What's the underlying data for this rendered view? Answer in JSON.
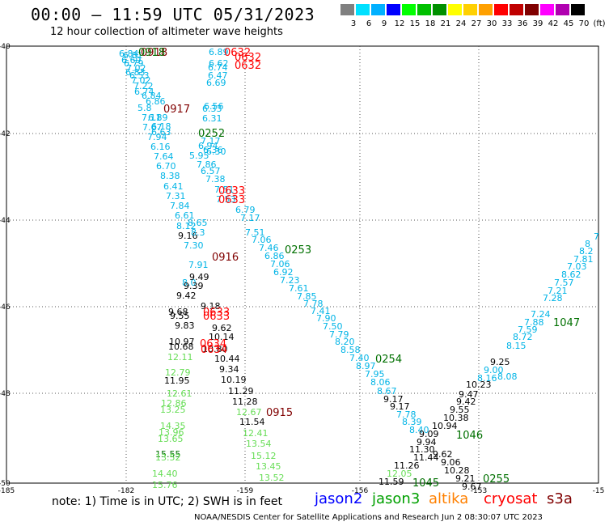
{
  "title": "00:00 – 11:59 UTC 05/31/2023",
  "subtitle": "12 hour collection of altimeter wave heights",
  "legend": {
    "colors": [
      "#808080",
      "#00e0ff",
      "#00b0ff",
      "#0000ff",
      "#00ff00",
      "#00c000",
      "#009000",
      "#ffff00",
      "#ffd000",
      "#ffa000",
      "#ff0000",
      "#c00000",
      "#800000",
      "#ff00ff",
      "#b000b0",
      "#000000"
    ],
    "labels": [
      "3",
      "6",
      "9",
      "12",
      "15",
      "18",
      "21",
      "24",
      "27",
      "30",
      "33",
      "36",
      "39",
      "42",
      "45",
      "70",
      "(ft)"
    ]
  },
  "map": {
    "lat_labels": [
      "-40",
      "-42",
      "-44",
      "-46",
      "-48",
      "-50"
    ],
    "lon_labels": [
      "-185",
      "-182",
      "-159",
      "-156",
      "-153",
      "-15"
    ]
  },
  "satellite_colors": {
    "jason2": "#0000ff",
    "jason3": "#00a000",
    "altika": "#ff8000",
    "cryosat": "#ff0000",
    "s3a": "#800000",
    "light": "#00b4e6",
    "lightgreen": "#66dd55",
    "darkgreen": "#007000"
  },
  "observations": [
    {
      "text": "6.84",
      "c": "light"
    },
    {
      "text": "6.81",
      "c": "light"
    },
    {
      "text": "6.69",
      "c": "light"
    },
    {
      "text": "6.79",
      "c": "light"
    },
    {
      "text": "7.02",
      "c": "light"
    },
    {
      "text": "6.83",
      "c": "light"
    },
    {
      "text": "6.53",
      "c": "light"
    },
    {
      "text": "7.02",
      "c": "light"
    },
    {
      "text": "7.22",
      "c": "light"
    },
    {
      "text": "6.74",
      "c": "light"
    },
    {
      "text": "6.84",
      "c": "light"
    },
    {
      "text": "6.86",
      "c": "light"
    },
    {
      "text": "5.8",
      "c": "light"
    },
    {
      "text": "7.11",
      "c": "light"
    },
    {
      "text": "6.89",
      "c": "light"
    },
    {
      "text": "7.67",
      "c": "light"
    },
    {
      "text": "6.18",
      "c": "light"
    },
    {
      "text": "6.63",
      "c": "light"
    },
    {
      "text": "7.94",
      "c": "light"
    },
    {
      "text": "6.16",
      "c": "light"
    },
    {
      "text": "7.64",
      "c": "light"
    },
    {
      "text": "6.70",
      "c": "light"
    },
    {
      "text": "8.38",
      "c": "light"
    },
    {
      "text": "6.41",
      "c": "light"
    },
    {
      "text": "7.31",
      "c": "light"
    },
    {
      "text": "7.84",
      "c": "light"
    },
    {
      "text": "6.61",
      "c": "light"
    },
    {
      "text": "8.12",
      "c": "light"
    },
    {
      "text": "7.30",
      "c": "light"
    },
    {
      "text": "7.91",
      "c": "light"
    },
    {
      "text": "8.0",
      "c": "light"
    },
    {
      "text": "6.89",
      "c": "light"
    },
    {
      "text": "6.62",
      "c": "light"
    },
    {
      "text": "6.74",
      "c": "light"
    },
    {
      "text": "6.47",
      "c": "light"
    },
    {
      "text": "6.69",
      "c": "light"
    },
    {
      "text": "6.56",
      "c": "light"
    },
    {
      "text": "6.33",
      "c": "light"
    },
    {
      "text": "6.31",
      "c": "light"
    },
    {
      "text": "7.17",
      "c": "light"
    },
    {
      "text": "6.94",
      "c": "light"
    },
    {
      "text": "6.36",
      "c": "light"
    },
    {
      "text": "6.30",
      "c": "light"
    },
    {
      "text": "5.95",
      "c": "light"
    },
    {
      "text": "7.86",
      "c": "light"
    },
    {
      "text": "6.57",
      "c": "light"
    },
    {
      "text": "7.38",
      "c": "light"
    },
    {
      "text": "7.51",
      "c": "light"
    },
    {
      "text": "7.53",
      "c": "light"
    },
    {
      "text": "6.79",
      "c": "light"
    },
    {
      "text": "7.17",
      "c": "light"
    },
    {
      "text": "7.51",
      "c": "light"
    },
    {
      "text": "7.06",
      "c": "light"
    },
    {
      "text": "7.46",
      "c": "light"
    },
    {
      "text": "6.86",
      "c": "light"
    },
    {
      "text": "7.06",
      "c": "light"
    },
    {
      "text": "6.92",
      "c": "light"
    },
    {
      "text": "7.23",
      "c": "light"
    },
    {
      "text": "7.61",
      "c": "light"
    },
    {
      "text": "7.85",
      "c": "light"
    },
    {
      "text": "7.78",
      "c": "light"
    },
    {
      "text": "7.41",
      "c": "light"
    },
    {
      "text": "7.90",
      "c": "light"
    },
    {
      "text": "7.50",
      "c": "light"
    },
    {
      "text": "7.79",
      "c": "light"
    },
    {
      "text": "8.20",
      "c": "light"
    },
    {
      "text": "8.58",
      "c": "light"
    },
    {
      "text": "7.40",
      "c": "light"
    },
    {
      "text": "8.97",
      "c": "light"
    },
    {
      "text": "7.95",
      "c": "light"
    },
    {
      "text": "8.06",
      "c": "light"
    },
    {
      "text": "8.67",
      "c": "light"
    },
    {
      "text": "9.17",
      "c": "blue"
    },
    {
      "text": "9.17",
      "c": "blue"
    },
    {
      "text": "7.78",
      "c": "light"
    },
    {
      "text": "8.39",
      "c": "light"
    },
    {
      "text": "8.40",
      "c": "light"
    },
    {
      "text": "10.23",
      "c": "blue"
    },
    {
      "text": "9.47",
      "c": "blue"
    },
    {
      "text": "9.42",
      "c": "blue"
    },
    {
      "text": "9.55",
      "c": "blue"
    },
    {
      "text": "10.38",
      "c": "blue"
    },
    {
      "text": "10.94",
      "c": "blue"
    },
    {
      "text": "9.09",
      "c": "blue"
    },
    {
      "text": "9.94",
      "c": "blue"
    },
    {
      "text": "11.30",
      "c": "blue"
    },
    {
      "text": "9.62",
      "c": "blue"
    },
    {
      "text": "11.44",
      "c": "blue"
    },
    {
      "text": "9.06",
      "c": "blue"
    },
    {
      "text": "11.26",
      "c": "blue"
    },
    {
      "text": "10.28",
      "c": "blue"
    },
    {
      "text": "9.21",
      "c": "blue"
    },
    {
      "text": "9.67",
      "c": "blue"
    },
    {
      "text": "11.59",
      "c": "blue"
    },
    {
      "text": "12.05",
      "c": "lightgreen"
    },
    {
      "text": "8.16",
      "c": "light"
    },
    {
      "text": "8.08",
      "c": "light"
    },
    {
      "text": "9.25",
      "c": "blue"
    },
    {
      "text": "9.00",
      "c": "light"
    },
    {
      "text": "8.15",
      "c": "light"
    },
    {
      "text": "8.72",
      "c": "light"
    },
    {
      "text": "7.59",
      "c": "light"
    },
    {
      "text": "7.88",
      "c": "light"
    },
    {
      "text": "7.24",
      "c": "light"
    },
    {
      "text": "7.28",
      "c": "light"
    },
    {
      "text": "7.21",
      "c": "light"
    },
    {
      "text": "7.57",
      "c": "light"
    },
    {
      "text": "8.62",
      "c": "light"
    },
    {
      "text": "7.03",
      "c": "light"
    },
    {
      "text": "7.81",
      "c": "light"
    },
    {
      "text": "8.2",
      "c": "light"
    },
    {
      "text": "8",
      "c": "light"
    },
    {
      "text": "7",
      "c": "light"
    },
    {
      "text": "9.16",
      "c": "blue"
    },
    {
      "text": "8.65",
      "c": "light"
    },
    {
      "text": "8.3",
      "c": "light"
    },
    {
      "text": "9.49",
      "c": "blue"
    },
    {
      "text": "9.39",
      "c": "blue"
    },
    {
      "text": "9.42",
      "c": "blue"
    },
    {
      "text": "9.18",
      "c": "blue"
    },
    {
      "text": "9.68",
      "c": "blue"
    },
    {
      "text": "9.55",
      "c": "blue"
    },
    {
      "text": "9.83",
      "c": "blue"
    },
    {
      "text": "9.62",
      "c": "blue"
    },
    {
      "text": "10.14",
      "c": "blue"
    },
    {
      "text": "10.97",
      "c": "blue"
    },
    {
      "text": "10.68",
      "c": "blue"
    },
    {
      "text": "10.80",
      "c": "blue"
    },
    {
      "text": "10.44",
      "c": "blue"
    },
    {
      "text": "9.34",
      "c": "blue"
    },
    {
      "text": "10.19",
      "c": "blue"
    },
    {
      "text": "11.95",
      "c": "blue"
    },
    {
      "text": "11.29",
      "c": "blue"
    },
    {
      "text": "11.28",
      "c": "blue"
    },
    {
      "text": "11.54",
      "c": "blue"
    },
    {
      "text": "12.11",
      "c": "lightgreen"
    },
    {
      "text": "12.79",
      "c": "lightgreen"
    },
    {
      "text": "12.61",
      "c": "lightgreen"
    },
    {
      "text": "12.86",
      "c": "lightgreen"
    },
    {
      "text": "13.25",
      "c": "lightgreen"
    },
    {
      "text": "14.35",
      "c": "lightgreen"
    },
    {
      "text": "13.96",
      "c": "lightgreen"
    },
    {
      "text": "13.65",
      "c": "lightgreen"
    },
    {
      "text": "15.55",
      "c": "darkgreen"
    },
    {
      "text": "13.52",
      "c": "lightgreen"
    },
    {
      "text": "14.40",
      "c": "lightgreen"
    },
    {
      "text": "15.76",
      "c": "lightgreen"
    },
    {
      "text": "12.67",
      "c": "lightgreen"
    },
    {
      "text": "12.41",
      "c": "lightgreen"
    },
    {
      "text": "13.54",
      "c": "lightgreen"
    },
    {
      "text": "15.12",
      "c": "lightgreen"
    },
    {
      "text": "13.45",
      "c": "lightgreen"
    },
    {
      "text": "13.52",
      "c": "lightgreen"
    }
  ],
  "times": [
    {
      "text": "0918",
      "c": "s3a"
    },
    {
      "text": "0918",
      "c": "darkgreen"
    },
    {
      "text": "0917",
      "c": "s3a"
    },
    {
      "text": "0916",
      "c": "s3a"
    },
    {
      "text": "0915",
      "c": "s3a"
    },
    {
      "text": "0632",
      "c": "cryosat"
    },
    {
      "text": "0632",
      "c": "cryosat"
    },
    {
      "text": "0632",
      "c": "cryosat"
    },
    {
      "text": "0633",
      "c": "cryosat"
    },
    {
      "text": "0633",
      "c": "cryosat"
    },
    {
      "text": "0633",
      "c": "cryosat"
    },
    {
      "text": "0633",
      "c": "cryosat"
    },
    {
      "text": "0634",
      "c": "cryosat"
    },
    {
      "text": "0634",
      "c": "cryosat"
    },
    {
      "text": "0252",
      "c": "darkgreen"
    },
    {
      "text": "0253",
      "c": "darkgreen"
    },
    {
      "text": "0254",
      "c": "darkgreen"
    },
    {
      "text": "0255",
      "c": "darkgreen"
    },
    {
      "text": "1045",
      "c": "darkgreen"
    },
    {
      "text": "1046",
      "c": "darkgreen"
    },
    {
      "text": "1047",
      "c": "darkgreen"
    }
  ],
  "note": "note:  1) Time is in UTC;  2) SWH is in feet",
  "satellites": [
    "jason2",
    "jason3",
    "altika",
    "cryosat",
    "s3a"
  ],
  "credit": "NOAA/NESDIS Center for Satellite Applications and Research   Jun  2 08:30:07 UTC 2023"
}
